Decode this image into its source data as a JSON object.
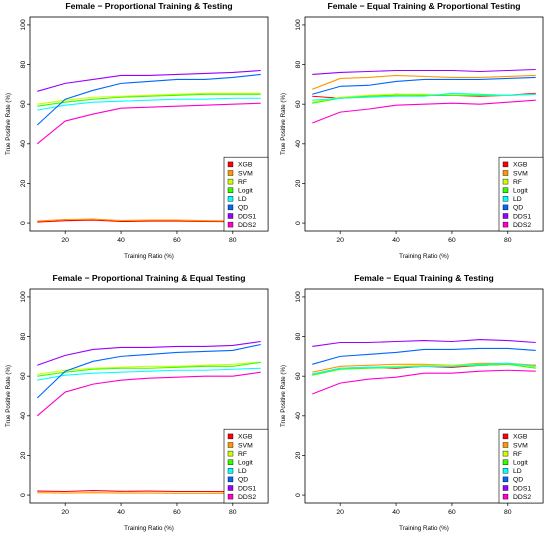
{
  "figure": {
    "background": "#ffffff"
  },
  "legend_items": [
    {
      "label": "XGB",
      "color": "#ff0000"
    },
    {
      "label": "SVM",
      "color": "#ff9900"
    },
    {
      "label": "RF",
      "color": "#ccff00"
    },
    {
      "label": "Logit",
      "color": "#33ff00"
    },
    {
      "label": "LD",
      "color": "#00ffff"
    },
    {
      "label": "QD",
      "color": "#0066ff"
    },
    {
      "label": "DDS1",
      "color": "#9900ff"
    },
    {
      "label": "DDS2",
      "color": "#ff00cc"
    }
  ],
  "chart_data": [
    {
      "type": "line",
      "title": "Female − Proportional Training & Testing",
      "xlabel": "Training Ratio (%)",
      "ylabel": "True Positive Rate (%)",
      "xlim": [
        10,
        90
      ],
      "ylim": [
        0,
        100
      ],
      "xticks": [
        20,
        40,
        60,
        80
      ],
      "yticks": [
        0,
        20,
        40,
        60,
        80,
        100
      ],
      "legend_position": "bottom-right",
      "x": [
        10,
        20,
        30,
        40,
        50,
        60,
        70,
        80,
        90
      ],
      "series": [
        {
          "name": "XGB",
          "color": "#ff0000",
          "values": [
            0.5,
            1.2,
            1.5,
            0.8,
            1.0,
            1.0,
            0.8,
            0.7,
            0.5
          ]
        },
        {
          "name": "SVM",
          "color": "#ff9900",
          "values": [
            1.0,
            1.8,
            2.0,
            1.3,
            1.5,
            1.5,
            1.2,
            1.1,
            1.0
          ]
        },
        {
          "name": "RF",
          "color": "#ccff00",
          "values": [
            60,
            62,
            63.5,
            64,
            64.5,
            65,
            65.5,
            65.5,
            65.5
          ]
        },
        {
          "name": "Logit",
          "color": "#33ff00",
          "values": [
            59,
            61,
            62.5,
            63.5,
            64,
            64.5,
            65,
            65,
            65
          ]
        },
        {
          "name": "LD",
          "color": "#00ffff",
          "values": [
            57,
            59.5,
            61,
            61.5,
            62,
            62.5,
            62.5,
            63,
            63
          ]
        },
        {
          "name": "QD",
          "color": "#0066ff",
          "values": [
            49.5,
            62.5,
            67,
            70.5,
            71.5,
            72.5,
            72.5,
            73.5,
            75
          ]
        },
        {
          "name": "DDS1",
          "color": "#9900ff",
          "values": [
            66.5,
            70.5,
            72.5,
            74.5,
            74.5,
            75,
            75.5,
            76,
            77
          ]
        },
        {
          "name": "DDS2",
          "color": "#ff00cc",
          "values": [
            40,
            51.5,
            55,
            58,
            58.5,
            59,
            59.5,
            60,
            60.5
          ]
        }
      ]
    },
    {
      "type": "line",
      "title": "Female − Equal Training & Proportional Testing",
      "xlabel": "Training Ratio (%)",
      "ylabel": "True Positive Rate (%)",
      "xlim": [
        10,
        90
      ],
      "ylim": [
        0,
        100
      ],
      "xticks": [
        20,
        40,
        60,
        80
      ],
      "yticks": [
        0,
        20,
        40,
        60,
        80,
        100
      ],
      "legend_position": "bottom-right",
      "x": [
        10,
        20,
        30,
        40,
        50,
        60,
        70,
        80,
        90
      ],
      "series": [
        {
          "name": "XGB",
          "color": "#ff0000",
          "values": [
            64,
            63,
            64,
            65,
            64.5,
            64.5,
            64,
            64.5,
            65.5
          ]
        },
        {
          "name": "SVM",
          "color": "#ff9900",
          "values": [
            67.5,
            73,
            73.5,
            74.5,
            74,
            73.5,
            73.5,
            74,
            74.5
          ]
        },
        {
          "name": "RF",
          "color": "#ccff00",
          "values": [
            61,
            63.5,
            64.5,
            65,
            65,
            64.5,
            64.5,
            64.5,
            65
          ]
        },
        {
          "name": "Logit",
          "color": "#33ff00",
          "values": [
            60.5,
            63,
            64,
            64.5,
            64.5,
            64.5,
            64.5,
            64.5,
            65
          ]
        },
        {
          "name": "LD",
          "color": "#00ffff",
          "values": [
            62,
            63,
            63.5,
            64,
            64,
            65.5,
            65,
            64.5,
            65
          ]
        },
        {
          "name": "QD",
          "color": "#0066ff",
          "values": [
            65,
            69,
            69.5,
            71.5,
            72.5,
            72.5,
            72.5,
            73,
            73.5
          ]
        },
        {
          "name": "DDS1",
          "color": "#9900ff",
          "values": [
            75,
            76,
            76.5,
            77,
            77,
            77,
            76.5,
            77,
            77.5
          ]
        },
        {
          "name": "DDS2",
          "color": "#ff00cc",
          "values": [
            50.5,
            56,
            57.5,
            59.5,
            60,
            60.5,
            60,
            61,
            62
          ]
        }
      ]
    },
    {
      "type": "line",
      "title": "Female − Proportional Training & Equal Testing",
      "xlabel": "Training Ratio (%)",
      "ylabel": "True Positive Rate (%)",
      "xlim": [
        10,
        90
      ],
      "ylim": [
        0,
        100
      ],
      "xticks": [
        20,
        40,
        60,
        80
      ],
      "yticks": [
        0,
        20,
        40,
        60,
        80,
        100
      ],
      "legend_position": "bottom-right",
      "x": [
        10,
        20,
        30,
        40,
        50,
        60,
        70,
        80,
        90
      ],
      "series": [
        {
          "name": "XGB",
          "color": "#ff0000",
          "values": [
            2,
            1.8,
            2.3,
            1.9,
            2,
            1.8,
            1.8,
            1.7,
            1.5
          ]
        },
        {
          "name": "SVM",
          "color": "#ff9900",
          "values": [
            1.2,
            1.0,
            1.2,
            1.0,
            1.0,
            0.9,
            0.9,
            0.9,
            0.8
          ]
        },
        {
          "name": "RF",
          "color": "#ccff00",
          "values": [
            61,
            63,
            64,
            64.5,
            65,
            65,
            65.5,
            66,
            67
          ]
        },
        {
          "name": "Logit",
          "color": "#33ff00",
          "values": [
            60,
            62,
            63.5,
            64,
            64,
            64.5,
            65,
            65,
            67
          ]
        },
        {
          "name": "LD",
          "color": "#00ffff",
          "values": [
            58,
            60.5,
            61.5,
            62,
            62.5,
            63,
            63,
            63.5,
            64
          ]
        },
        {
          "name": "QD",
          "color": "#0066ff",
          "values": [
            49,
            62.5,
            67.5,
            70,
            71,
            72,
            72.5,
            73,
            76
          ]
        },
        {
          "name": "DDS1",
          "color": "#9900ff",
          "values": [
            65.5,
            70.5,
            73.5,
            74.5,
            74.5,
            75,
            75,
            75.5,
            77.5
          ]
        },
        {
          "name": "DDS2",
          "color": "#ff00cc",
          "values": [
            40,
            52,
            56,
            58,
            59,
            59.5,
            60,
            60,
            62
          ]
        }
      ]
    },
    {
      "type": "line",
      "title": "Female − Equal Training & Testing",
      "xlabel": "Training Ratio (%)",
      "ylabel": "True Positive Rate (%)",
      "xlim": [
        10,
        90
      ],
      "ylim": [
        0,
        100
      ],
      "xticks": [
        20,
        40,
        60,
        80
      ],
      "yticks": [
        0,
        20,
        40,
        60,
        80,
        100
      ],
      "legend_position": "bottom-right",
      "x": [
        10,
        20,
        30,
        40,
        50,
        60,
        70,
        80,
        90
      ],
      "series": [
        {
          "name": "XGB",
          "color": "#ff0000",
          "values": [
            61,
            64,
            64.5,
            64,
            65,
            64.5,
            65.5,
            66,
            65.5
          ]
        },
        {
          "name": "SVM",
          "color": "#ff9900",
          "values": [
            62,
            65,
            65.5,
            66,
            66,
            65.5,
            66.5,
            66.5,
            65.5
          ]
        },
        {
          "name": "RF",
          "color": "#ccff00",
          "values": [
            61,
            64,
            64.5,
            65,
            65.5,
            65.5,
            66,
            66,
            64.5
          ]
        },
        {
          "name": "Logit",
          "color": "#33ff00",
          "values": [
            60.5,
            63.5,
            64,
            64.5,
            65,
            65,
            65.5,
            66,
            64
          ]
        },
        {
          "name": "LD",
          "color": "#00ffff",
          "values": [
            61,
            64,
            64.5,
            64.5,
            65,
            65,
            66,
            66.5,
            65
          ]
        },
        {
          "name": "QD",
          "color": "#0066ff",
          "values": [
            66,
            70,
            71,
            72,
            73.5,
            73.5,
            74,
            74,
            73
          ]
        },
        {
          "name": "DDS1",
          "color": "#9900ff",
          "values": [
            75,
            77,
            77,
            77.5,
            78,
            77.5,
            78.5,
            78,
            77
          ]
        },
        {
          "name": "DDS2",
          "color": "#ff00cc",
          "values": [
            51,
            56.5,
            58.5,
            59.5,
            61.5,
            61.5,
            62.5,
            63,
            62.5
          ]
        }
      ]
    }
  ]
}
